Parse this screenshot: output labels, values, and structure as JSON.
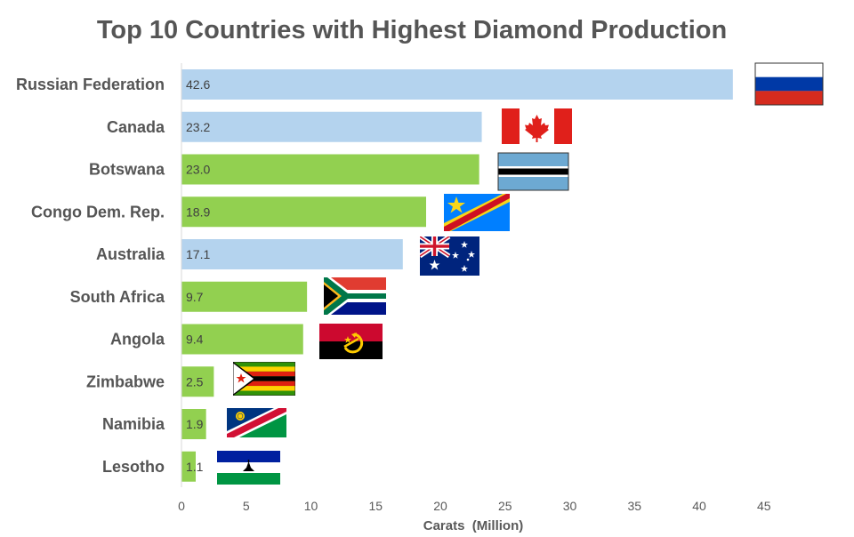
{
  "chart_data": {
    "type": "bar",
    "orientation": "horizontal",
    "title": "Top 10 Countries with Highest Diamond Production",
    "xlabel": "Carats  (Million)",
    "ylabel": "",
    "xlim": [
      0,
      45
    ],
    "xticks": [
      0,
      5,
      10,
      15,
      20,
      25,
      30,
      35,
      40,
      45
    ],
    "categories": [
      "Russian Federation",
      "Canada",
      "Botswana",
      "Congo Dem. Rep.",
      "Australia",
      "South Africa",
      "Angola",
      "Zimbabwe",
      "Namibia",
      "Lesotho"
    ],
    "values": [
      42.6,
      23.2,
      23.0,
      18.9,
      17.1,
      9.7,
      9.4,
      2.5,
      1.9,
      1.1
    ],
    "value_labels": [
      "42.6",
      "23.2",
      "23.0",
      "18.9",
      "17.1",
      "9.7",
      "9.4",
      "2.5",
      "1.9",
      "1.1"
    ],
    "bar_colors": [
      "#b4d3ee",
      "#b4d3ee",
      "#92d050",
      "#92d050",
      "#b4d3ee",
      "#92d050",
      "#92d050",
      "#92d050",
      "#92d050",
      "#92d050"
    ],
    "flags": [
      "russia-flag-icon",
      "canada-flag-icon",
      "botswana-flag-icon",
      "dr-congo-flag-icon",
      "australia-flag-icon",
      "south-africa-flag-icon",
      "angola-flag-icon",
      "zimbabwe-flag-icon",
      "namibia-flag-icon",
      "lesotho-flag-icon"
    ],
    "grid": false,
    "legend": "none"
  }
}
